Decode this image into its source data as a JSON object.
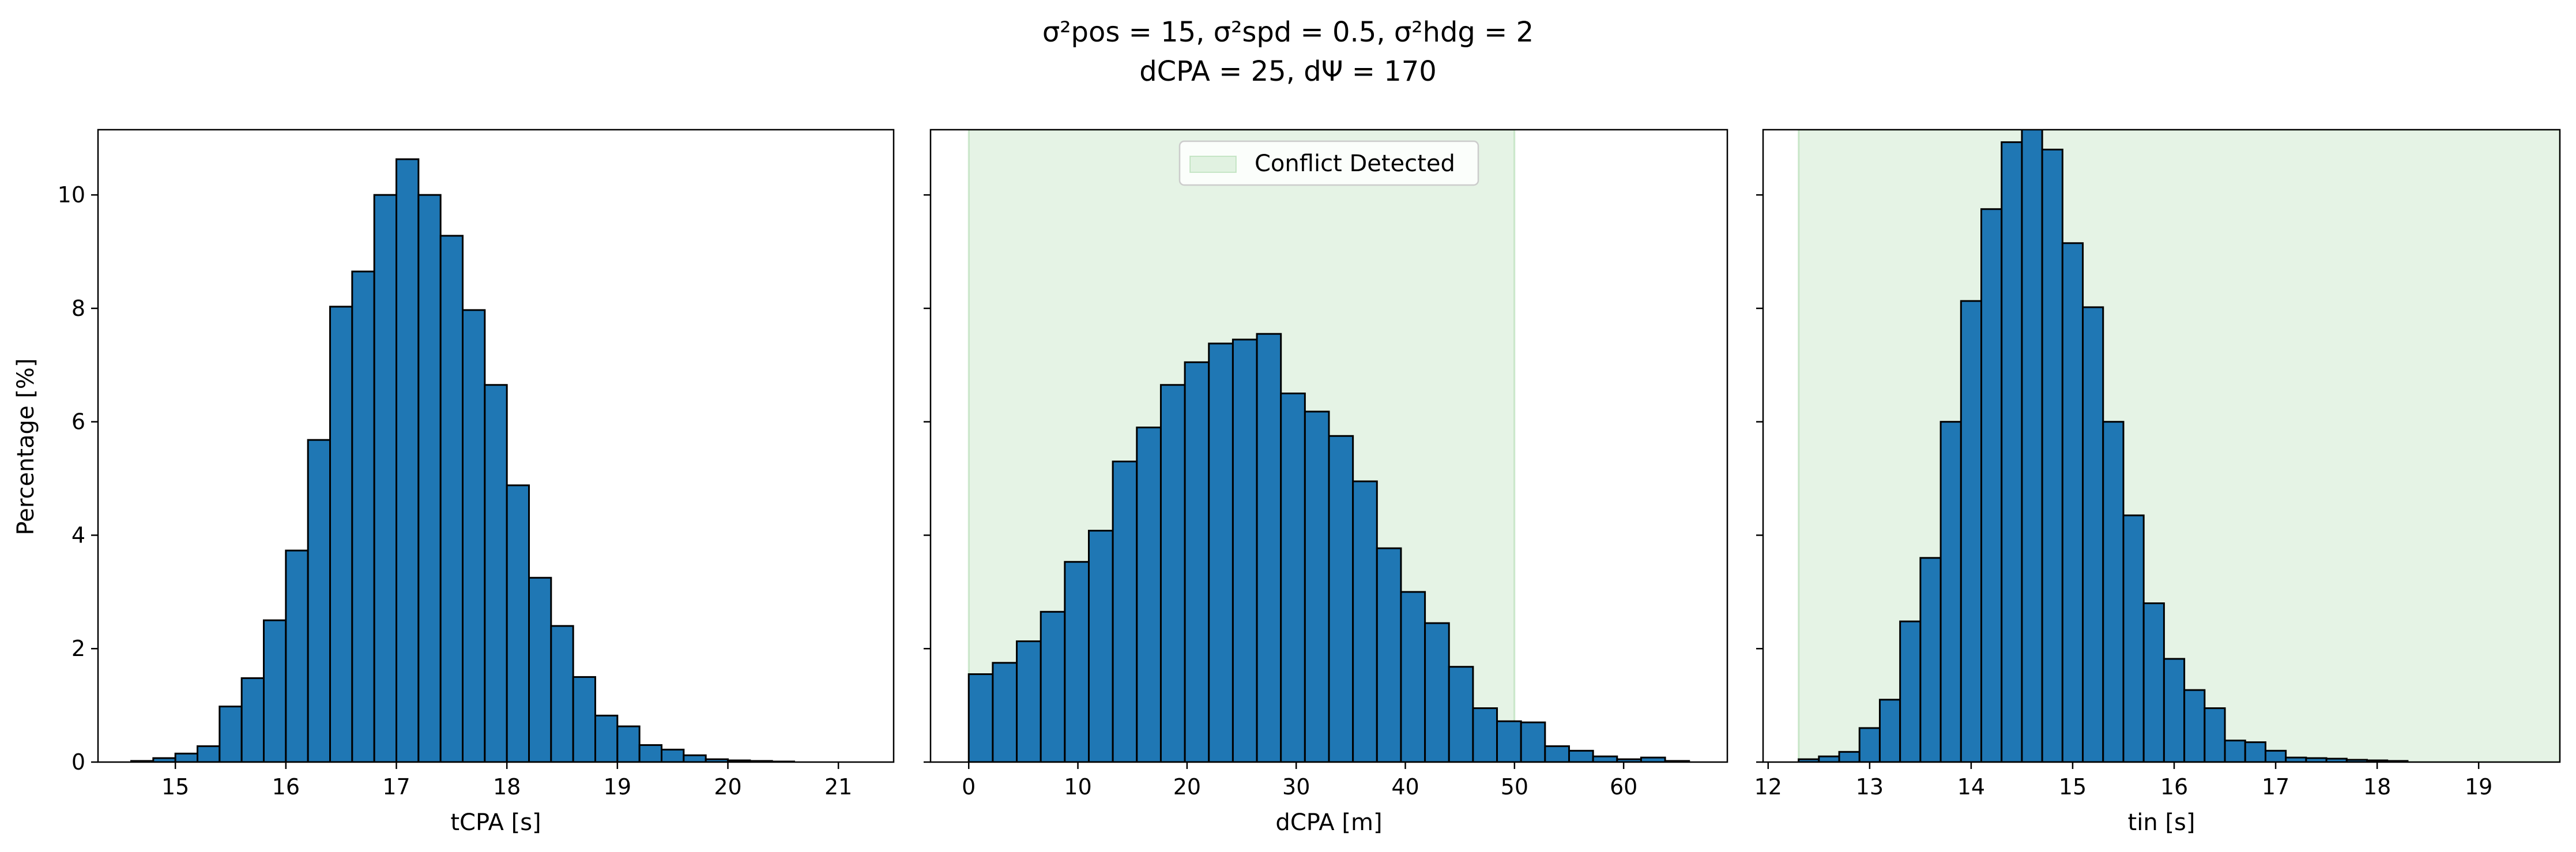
{
  "figure": {
    "title_line1": "σ²pos = 15, σ²spd = 0.5, σ²hdg = 2",
    "title_line2": "dCPA = 25, dΨ = 170",
    "ylabel": "Percentage [%]",
    "bar_color": "#1f77b4",
    "edge_color": "#000000",
    "conflict_color": "#2ca02c"
  },
  "chart_data": [
    {
      "type": "bar",
      "xlabel": "tCPA [s]",
      "ylabel": "Percentage [%]",
      "xlim": [
        14.3,
        21.5
      ],
      "ylim": [
        0,
        11.15
      ],
      "xticks": [
        15,
        16,
        17,
        18,
        19,
        20,
        21
      ],
      "yticks": [
        0,
        2,
        4,
        6,
        8,
        10
      ],
      "bin_start": 14.6,
      "bin_width": 0.2,
      "values": [
        0.02,
        0.07,
        0.15,
        0.28,
        0.98,
        1.48,
        2.5,
        3.73,
        5.68,
        8.03,
        8.65,
        10.0,
        10.63,
        10.0,
        9.28,
        7.97,
        6.65,
        4.88,
        3.25,
        2.4,
        1.5,
        0.82,
        0.63,
        0.3,
        0.22,
        0.12,
        0.05,
        0.03,
        0.02,
        0.01
      ]
    },
    {
      "type": "bar",
      "xlabel": "dCPA [m]",
      "ylabel": "Percentage [%]",
      "xlim": [
        -3.5,
        69.5
      ],
      "ylim": [
        0,
        11.15
      ],
      "xticks": [
        0,
        10,
        20,
        30,
        40,
        50,
        60
      ],
      "yticks": [
        0,
        2,
        4,
        6,
        8,
        10
      ],
      "bin_start": 0,
      "bin_width": 2.2,
      "values": [
        1.55,
        1.75,
        2.13,
        2.65,
        3.53,
        4.08,
        5.3,
        5.9,
        6.65,
        7.05,
        7.38,
        7.45,
        7.55,
        6.5,
        6.18,
        5.75,
        4.95,
        3.77,
        3.0,
        2.45,
        1.68,
        0.95,
        0.72,
        0.7,
        0.28,
        0.2,
        0.1,
        0.05,
        0.08,
        0.02
      ],
      "conflict_region": [
        0,
        50
      ],
      "legend": {
        "label": "Conflict Detected",
        "position": "upper center"
      }
    },
    {
      "type": "bar",
      "xlabel": "tin [s]",
      "ylabel": "Percentage [%]",
      "xlim": [
        11.95,
        19.8
      ],
      "ylim": [
        0,
        11.15
      ],
      "xticks": [
        12,
        13,
        14,
        15,
        16,
        17,
        18,
        19
      ],
      "yticks": [
        0,
        2,
        4,
        6,
        8,
        10
      ],
      "bin_start": 12.3,
      "bin_width": 0.2,
      "values": [
        0.05,
        0.1,
        0.18,
        0.6,
        1.1,
        2.48,
        3.6,
        6.0,
        8.13,
        9.75,
        10.93,
        11.2,
        10.8,
        9.15,
        8.02,
        6.0,
        4.35,
        2.8,
        1.82,
        1.27,
        0.95,
        0.38,
        0.35,
        0.2,
        0.08,
        0.07,
        0.06,
        0.04,
        0.03,
        0.02
      ],
      "conflict_region": [
        12.3,
        19.8
      ]
    }
  ]
}
